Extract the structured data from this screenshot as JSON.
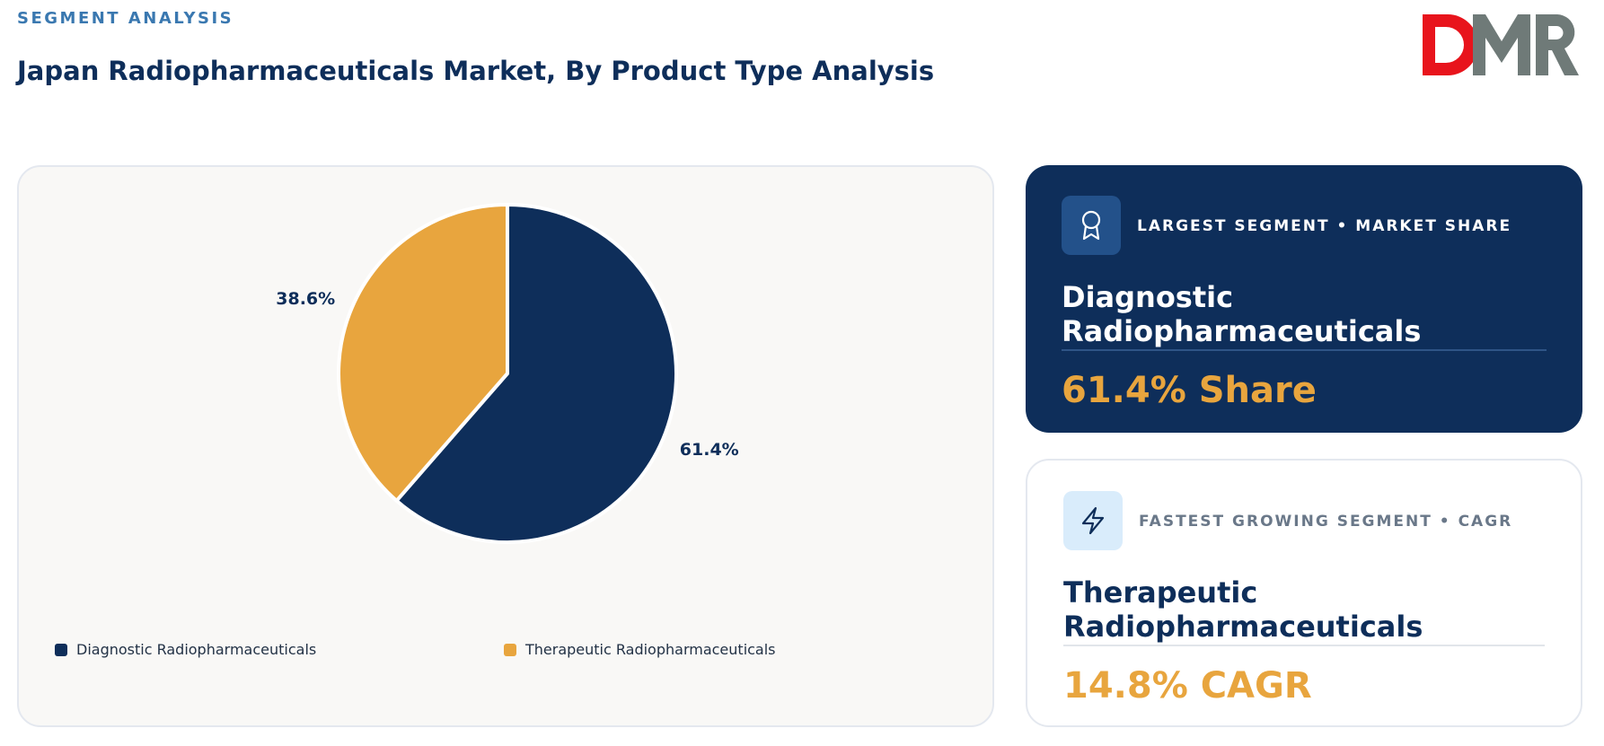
{
  "header": {
    "eyebrow": "SEGMENT ANALYSIS",
    "title": "Japan Radiopharmaceuticals Market, By Product Type Analysis"
  },
  "logo": {
    "text": "DMR",
    "colors": {
      "d": "#e8141c",
      "m": "#6f7a78",
      "r": "#6f7a78"
    }
  },
  "chart_data": {
    "type": "pie",
    "title": "",
    "categories": [
      "Diagnostic Radiopharmaceuticals",
      "Therapeutic Radiopharmaceuticals"
    ],
    "values": [
      61.4,
      38.6
    ],
    "labels": [
      "61.4%",
      "38.6%"
    ],
    "colors": [
      "#0e2e5a",
      "#e8a53e"
    ],
    "start_angle": "12 o'clock, clockwise",
    "legend_position": "bottom"
  },
  "cards": {
    "largest": {
      "icon": "award-icon",
      "label": "LARGEST SEGMENT • MARKET SHARE",
      "segment": "Diagnostic Radiopharmaceuticals",
      "metric": "61.4% Share"
    },
    "fastest": {
      "icon": "lightning-icon",
      "label": "FASTEST GROWING SEGMENT • CAGR",
      "segment": "Therapeutic Radiopharmaceuticals",
      "metric": "14.8% CAGR"
    }
  }
}
